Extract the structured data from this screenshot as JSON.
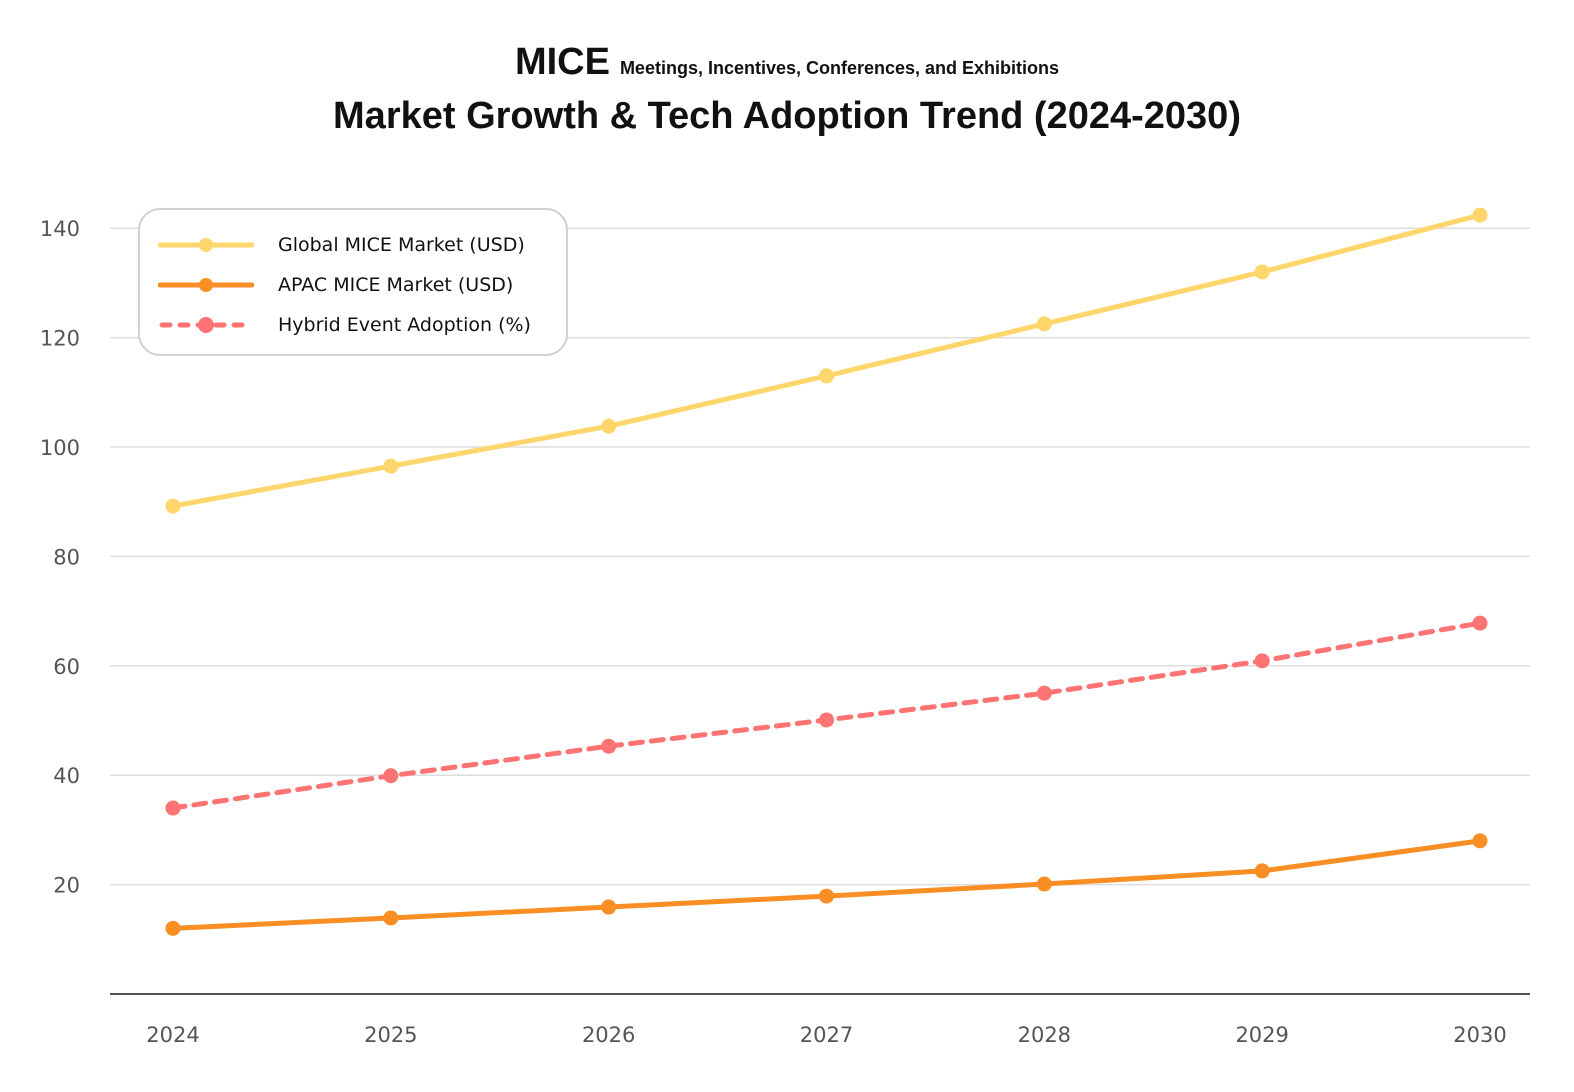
{
  "chart_data": {
    "type": "line",
    "title_prefix": "MICE",
    "title_expansion": "Meetings, Incentives, Conferences, and Exhibitions",
    "title": "Market Growth & Tech Adoption Trend (2024-2030)",
    "xlabel": "",
    "ylabel": "",
    "x": [
      "2024",
      "2025",
      "2026",
      "2027",
      "2028",
      "2029",
      "2030"
    ],
    "ylim": [
      0,
      150
    ],
    "yticks": [
      20,
      40,
      60,
      80,
      100,
      120,
      140
    ],
    "grid": true,
    "legend_position": "top-left",
    "series": [
      {
        "name": "Global MICE Market  (USD)",
        "color": "#FFD66B",
        "style": "solid",
        "values": [
          89.2,
          96.5,
          103.8,
          113.0,
          122.5,
          132.0,
          142.4
        ]
      },
      {
        "name": "APAC  MICE Market (USD)",
        "color": "#F98E24",
        "style": "solid",
        "values": [
          12.0,
          13.9,
          15.9,
          17.9,
          20.1,
          22.5,
          28.0
        ]
      },
      {
        "name": "Hybrid Event Adoption (%)",
        "color": "#FF7373",
        "style": "dashed",
        "values": [
          34.0,
          39.9,
          45.3,
          50.1,
          55.0,
          60.9,
          67.8
        ]
      }
    ]
  }
}
